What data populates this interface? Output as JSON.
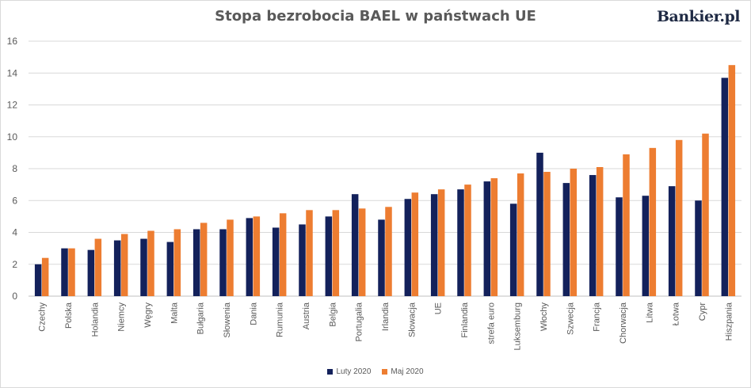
{
  "title": "Stopa bezrobocia BAEL w państwach UE",
  "logo_text": "Bankier.pl",
  "colors": {
    "series1": "#13215b",
    "series2": "#ed7d31",
    "grid": "#d9d9d9",
    "axis": "#bfbfbf"
  },
  "chart_data": {
    "type": "bar",
    "title": "Stopa bezrobocia BAEL w państwach UE",
    "xlabel": "",
    "ylabel": "",
    "ylim": [
      0,
      16
    ],
    "yticks": [
      0,
      2,
      4,
      6,
      8,
      10,
      12,
      14,
      16
    ],
    "grid": true,
    "legend_position": "bottom",
    "categories": [
      "Czechy",
      "Polska",
      "Holandia",
      "Niemcy",
      "Węgry",
      "Malta",
      "Bułgaria",
      "Słowenia",
      "Dania",
      "Rumunia",
      "Austria",
      "Belgia",
      "Portugalia",
      "Irlandia",
      "Słowacja",
      "UE",
      "Finlandia",
      "strefa euro",
      "Luksemburg",
      "Włochy",
      "Szwecja",
      "Francja",
      "Chorwacja",
      "Litwa",
      "Łotwa",
      "Cypr",
      "Hiszpania"
    ],
    "series": [
      {
        "name": "Luty 2020",
        "values": [
          2.0,
          3.0,
          2.9,
          3.5,
          3.6,
          3.4,
          4.2,
          4.2,
          4.9,
          4.3,
          4.5,
          5.0,
          6.4,
          4.8,
          6.1,
          6.4,
          6.7,
          7.2,
          5.8,
          9.0,
          7.1,
          7.6,
          6.2,
          6.3,
          6.9,
          6.0,
          13.7
        ]
      },
      {
        "name": "Maj 2020",
        "values": [
          2.4,
          3.0,
          3.6,
          3.9,
          4.1,
          4.2,
          4.6,
          4.8,
          5.0,
          5.2,
          5.4,
          5.4,
          5.5,
          5.6,
          6.5,
          6.7,
          7.0,
          7.4,
          7.7,
          7.8,
          8.0,
          8.1,
          8.9,
          9.3,
          9.8,
          10.2,
          14.5
        ]
      }
    ]
  }
}
